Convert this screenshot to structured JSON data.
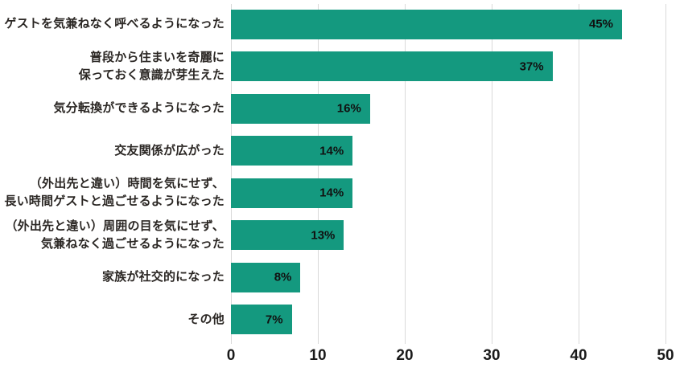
{
  "chart_data": {
    "type": "bar",
    "orientation": "horizontal",
    "title": "",
    "xlabel": "",
    "ylabel": "",
    "xlim": [
      0,
      50
    ],
    "x_ticks": [
      0,
      10,
      20,
      30,
      40,
      50
    ],
    "grid": true,
    "legend": "none",
    "bar_color": "#14997f",
    "gridline_color": "#d9d9d9",
    "categories": [
      "ゲストを気兼ねなく呼べるようになった",
      "普段から住まいを奇麗に保っておく意識が芽生えた",
      "気分転換ができるようになった",
      "交友関係が広がった",
      "（外出先と違い）時間を気にせず、長い時間ゲストと過ごせるようになった",
      "（外出先と違い）周囲の目を気にせず、気兼ねなく過ごせるようになった",
      "家族が社交的になった",
      "その他"
    ],
    "values": [
      45,
      37,
      16,
      14,
      14,
      13,
      8,
      7
    ],
    "rows": [
      {
        "line1": "ゲストを気兼ねなく呼べるようになった",
        "line2": "",
        "value": 45,
        "value_label": "45%"
      },
      {
        "line1": "普段から住まいを奇麗に",
        "line2": "保っておく意識が芽生えた",
        "value": 37,
        "value_label": "37%"
      },
      {
        "line1": "気分転換ができるようになった",
        "line2": "",
        "value": 16,
        "value_label": "16%"
      },
      {
        "line1": "交友関係が広がった",
        "line2": "",
        "value": 14,
        "value_label": "14%"
      },
      {
        "line1": "（外出先と違い）時間を気にせず、",
        "line2": "長い時間ゲストと過ごせるようになった",
        "value": 14,
        "value_label": "14%"
      },
      {
        "line1": "（外出先と違い）周囲の目を気にせず、",
        "line2": "気兼ねなく過ごせるようになった",
        "value": 13,
        "value_label": "13%"
      },
      {
        "line1": "家族が社交的になった",
        "line2": "",
        "value": 8,
        "value_label": "8%"
      },
      {
        "line1": "その他",
        "line2": "",
        "value": 7,
        "value_label": "7%"
      }
    ]
  }
}
